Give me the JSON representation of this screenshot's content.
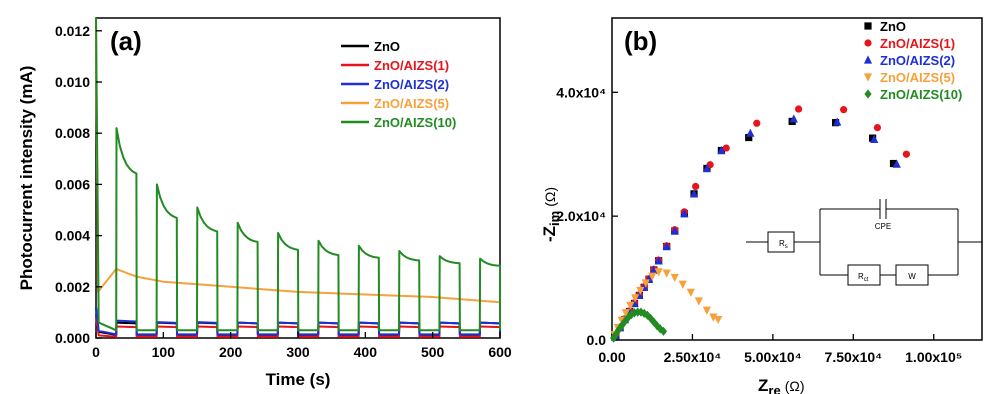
{
  "chart_data": [
    {
      "type": "line",
      "panel_label": "(a)",
      "xlabel": "Time (s)",
      "ylabel": "Photocurrent intensity (mA)",
      "xlim": [
        0,
        600
      ],
      "ylim": [
        0,
        0.0125
      ],
      "x_ticks": [
        "0",
        "100",
        "200",
        "300",
        "400",
        "500",
        "600"
      ],
      "y_ticks": [
        "0.000",
        "0.002",
        "0.004",
        "0.006",
        "0.008",
        "0.010",
        "0.012"
      ],
      "grid": false,
      "legend_position": "top-right",
      "light_on_intervals": [
        [
          30,
          60
        ],
        [
          90,
          120
        ],
        [
          150,
          180
        ],
        [
          210,
          240
        ],
        [
          270,
          300
        ],
        [
          330,
          360
        ],
        [
          390,
          420
        ],
        [
          450,
          480
        ],
        [
          510,
          540
        ],
        [
          570,
          600
        ]
      ],
      "series": [
        {
          "name": "ZnO",
          "color": "#000000",
          "initial_spike": 0.0012,
          "on_values": [
            0.0006,
            0.0006,
            0.0006,
            0.0006,
            0.0006,
            0.0006,
            0.0006,
            0.0006,
            0.0006,
            0.0006
          ],
          "off_values": [
            0.00012,
            0.00012,
            0.00012,
            0.00012,
            0.00012,
            0.00012,
            0.00012,
            0.00012,
            0.00012,
            0.00012
          ]
        },
        {
          "name": "ZnO/AIZS(1)",
          "color": "#e8141c",
          "initial_spike": 0.0008,
          "on_values": [
            0.00045,
            0.00045,
            0.00045,
            0.00045,
            0.00045,
            0.00045,
            0.00045,
            0.00045,
            0.00045,
            0.00045
          ],
          "off_values": [
            5e-05,
            5e-05,
            5e-05,
            5e-05,
            5e-05,
            5e-05,
            5e-05,
            5e-05,
            5e-05,
            5e-05
          ]
        },
        {
          "name": "ZnO/AIZS(2)",
          "color": "#1f2fd6",
          "initial_spike": 0.0012,
          "on_values": [
            0.00068,
            0.00062,
            0.00062,
            0.0006,
            0.0006,
            0.0006,
            0.0006,
            0.0006,
            0.0006,
            0.0006
          ],
          "off_values": [
            0.00014,
            0.00014,
            0.00014,
            0.00014,
            0.00014,
            0.00014,
            0.00014,
            0.00014,
            0.00014,
            0.00014
          ]
        },
        {
          "name": "ZnO/AIZS(5)",
          "color": "#f7a13b",
          "initial_spike": 0.0125,
          "continuous_x": [
            0,
            30,
            60,
            100,
            200,
            300,
            400,
            500,
            600
          ],
          "continuous_y": [
            0.0018,
            0.0027,
            0.0024,
            0.0022,
            0.002,
            0.0018,
            0.0017,
            0.0016,
            0.0014
          ]
        },
        {
          "name": "ZnO/AIZS(10)",
          "color": "#228b22",
          "initial_spike": 0.0125,
          "on_peaks": [
            0.0082,
            0.006,
            0.0051,
            0.0045,
            0.0041,
            0.0038,
            0.0036,
            0.0034,
            0.0032,
            0.0031
          ],
          "on_ends": [
            0.0063,
            0.0046,
            0.0041,
            0.0037,
            0.0034,
            0.0032,
            0.0031,
            0.003,
            0.0029,
            0.0028
          ],
          "off_values": [
            0.0003,
            0.0003,
            0.0003,
            0.0003,
            0.0003,
            0.0003,
            0.0003,
            0.0003,
            0.0003,
            0.0003
          ]
        }
      ]
    },
    {
      "type": "scatter",
      "panel_label": "(b)",
      "xlabel": "Z",
      "xlabel_sub": "re",
      "xlabel_unit": "(Ω)",
      "ylabel": "-Z",
      "ylabel_sub": "im",
      "ylabel_unit": "(Ω)",
      "xlim": [
        0,
        115000
      ],
      "ylim": [
        0,
        52000
      ],
      "x_ticks": [
        "0.00",
        "2.50x10⁴",
        "5.00x10⁴",
        "7.50x10⁴",
        "1.00x10⁵"
      ],
      "x_tick_values": [
        0,
        25000,
        50000,
        75000,
        100000
      ],
      "y_ticks": [
        "0.0",
        "2.0x10⁴",
        "4.0x10⁴"
      ],
      "y_tick_values": [
        0,
        20000,
        40000
      ],
      "grid": false,
      "legend_position": "top-right",
      "series": [
        {
          "name": "ZnO",
          "color": "#000000",
          "marker": "square",
          "x": [
            1200,
            2500,
            4000,
            5500,
            7000,
            8500,
            10000,
            11500,
            13000,
            14500,
            17000,
            19500,
            22500,
            25500,
            29500,
            34000,
            42500,
            56000,
            69500,
            81000,
            87500
          ],
          "y": [
            700,
            2000,
            3300,
            4600,
            5900,
            7200,
            8500,
            9800,
            11300,
            12800,
            15100,
            17600,
            20400,
            23600,
            27700,
            30600,
            32700,
            35300,
            35100,
            32600,
            28500
          ]
        },
        {
          "name": "ZnO/AIZS(1)",
          "color": "#e8141c",
          "marker": "circle",
          "x": [
            1200,
            2500,
            4000,
            5500,
            7000,
            8500,
            10000,
            11500,
            13000,
            14500,
            17000,
            19500,
            22500,
            26000,
            30500,
            35500,
            45000,
            58000,
            72000,
            82500,
            91500
          ],
          "y": [
            750,
            2100,
            3400,
            4700,
            6000,
            7300,
            8600,
            9900,
            11400,
            12900,
            15200,
            17800,
            20700,
            24800,
            28300,
            31000,
            35000,
            37300,
            37200,
            34300,
            30000
          ]
        },
        {
          "name": "ZnO/AIZS(2)",
          "color": "#1f2fd6",
          "marker": "triangle-up",
          "x": [
            1200,
            2500,
            4000,
            5500,
            7000,
            8500,
            10000,
            11500,
            13000,
            14500,
            17000,
            19500,
            22500,
            25500,
            29500,
            34000,
            43000,
            56500,
            70000,
            81500,
            88500
          ],
          "y": [
            700,
            2000,
            3300,
            4600,
            5900,
            7200,
            8500,
            9800,
            11300,
            12800,
            15100,
            17600,
            20400,
            23600,
            27700,
            30600,
            33400,
            35700,
            35200,
            32400,
            28400
          ]
        },
        {
          "name": "ZnO/AIZS(5)",
          "color": "#f7a13b",
          "marker": "triangle-down",
          "x": [
            800,
            1800,
            3000,
            4300,
            5700,
            7200,
            8800,
            10500,
            12500,
            14500,
            17000,
            19500,
            22000,
            24500,
            27000,
            29500,
            31500,
            33000
          ],
          "y": [
            900,
            2000,
            3200,
            4400,
            5600,
            6800,
            8000,
            9200,
            10300,
            11000,
            10800,
            10100,
            9000,
            7700,
            6300,
            4800,
            3700,
            3300
          ]
        },
        {
          "name": "ZnO/AIZS(10)",
          "color": "#228b22",
          "marker": "diamond",
          "x": [
            500,
            1200,
            2000,
            3000,
            4000,
            5000,
            6000,
            7000,
            8000,
            9000,
            10000,
            11000,
            12000,
            13000,
            14000,
            15000,
            16000
          ],
          "y": [
            300,
            900,
            1600,
            2300,
            3000,
            3600,
            4100,
            4400,
            4500,
            4500,
            4300,
            4000,
            3500,
            2900,
            2300,
            1800,
            1400
          ]
        }
      ],
      "inset": {
        "r_s": "R",
        "r_s_sub": "s",
        "cpe": "CPE",
        "r_ct": "R",
        "r_ct_sub": "ct",
        "w": "W"
      }
    }
  ]
}
